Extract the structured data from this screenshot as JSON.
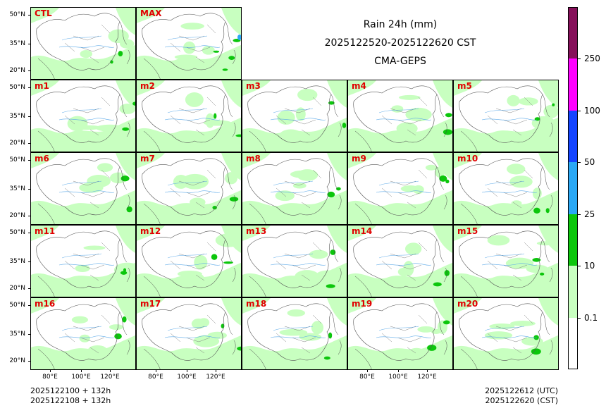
{
  "figure": {
    "title": "Rain 24h (mm)",
    "valid_period": "2025122520-2025122620 CST",
    "model": "CMA-GEPS"
  },
  "panels": {
    "top": [
      "CTL",
      "MAX"
    ],
    "grid": [
      [
        "m1",
        "m2",
        "m3",
        "m4",
        "m5"
      ],
      [
        "m6",
        "m7",
        "m8",
        "m9",
        "m10"
      ],
      [
        "m11",
        "m12",
        "m13",
        "m14",
        "m15"
      ],
      [
        "m16",
        "m17",
        "m18",
        "m19",
        "m20"
      ]
    ]
  },
  "axes": {
    "lat_ticks": [
      "50°N",
      "35°N",
      "20°N"
    ],
    "lon_ticks": [
      "80°E",
      "100°E",
      "120°E"
    ]
  },
  "colorbar": {
    "tick_labels": [
      "0.1",
      "10",
      "25",
      "50",
      "100",
      "250"
    ],
    "colors": [
      "#ffffff",
      "#c8ffc0",
      "#0cc60c",
      "#2aa8f5",
      "#1444ff",
      "#ff00ff",
      "#86105a"
    ]
  },
  "footer": {
    "init_utc": "2025122100 + 132h",
    "init_cst": "2025122108 + 132h",
    "valid_utc": "2025122612 (UTC)",
    "valid_cst": "2025122620 (CST)"
  }
}
